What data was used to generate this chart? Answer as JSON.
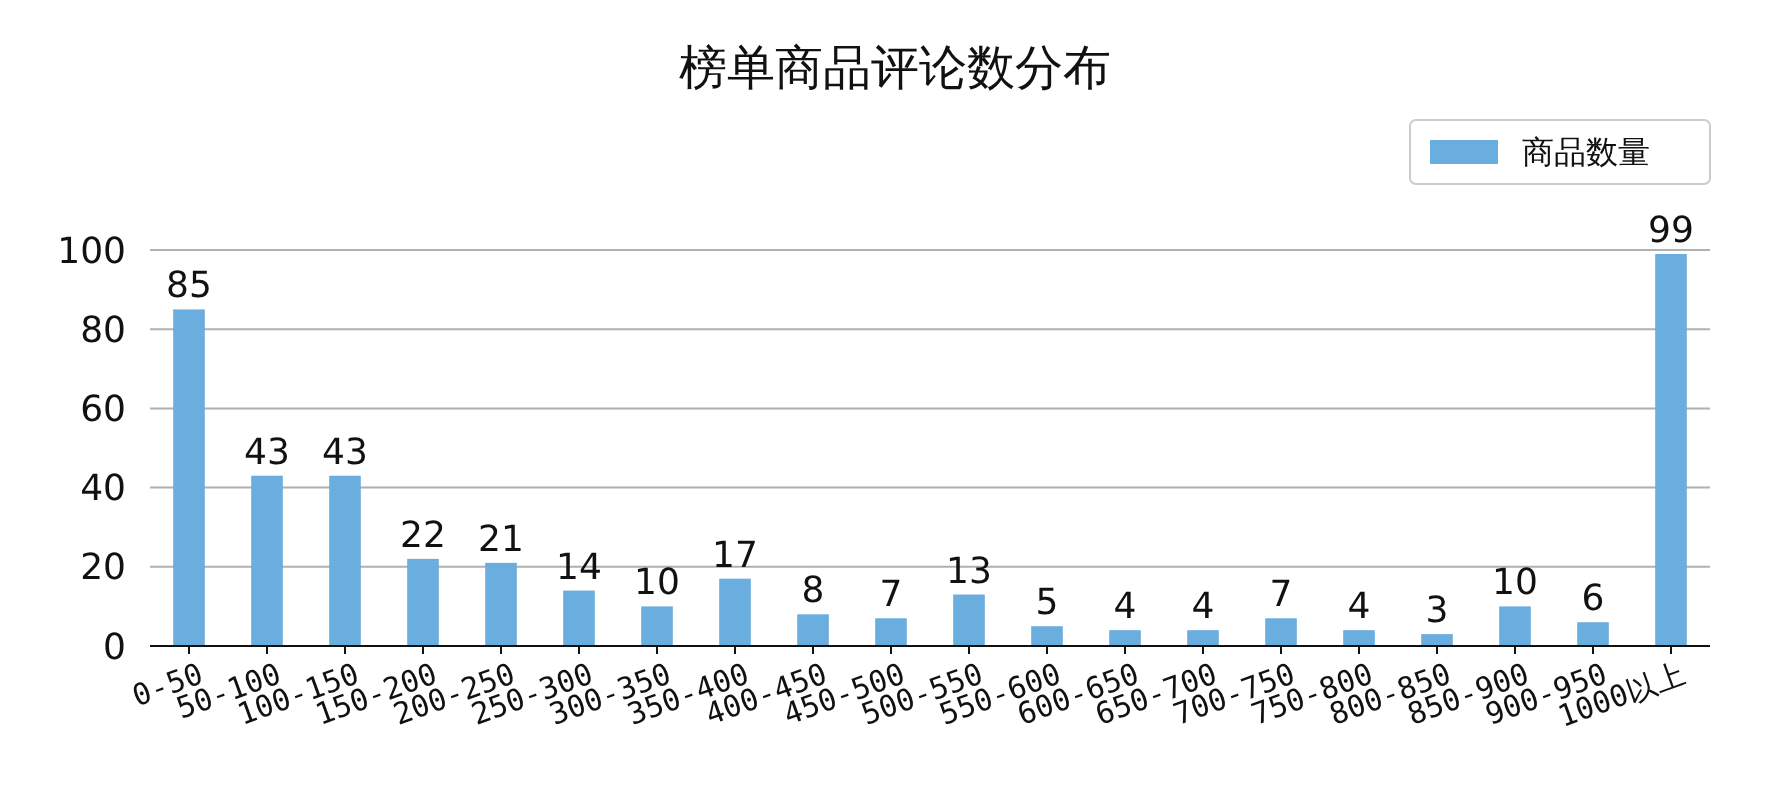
{
  "chart_data": {
    "type": "bar",
    "title": "榜单商品评论数分布",
    "categories": [
      "0-50",
      "50-100",
      "100-150",
      "150-200",
      "200-250",
      "250-300",
      "300-350",
      "350-400",
      "400-450",
      "450-500",
      "500-550",
      "550-600",
      "600-650",
      "650-700",
      "700-750",
      "750-800",
      "800-850",
      "850-900",
      "900-950",
      "1000以上"
    ],
    "series": [
      {
        "name": "商品数量",
        "color": "#6aaddf",
        "values": [
          85,
          43,
          43,
          22,
          21,
          14,
          10,
          17,
          8,
          7,
          13,
          5,
          4,
          4,
          7,
          4,
          3,
          10,
          6,
          99
        ]
      }
    ],
    "ylim": [
      0,
      100
    ],
    "yticks": [
      0,
      20,
      40,
      60,
      80,
      100
    ],
    "grid": "y",
    "legend": "top right",
    "data_labels": true
  }
}
